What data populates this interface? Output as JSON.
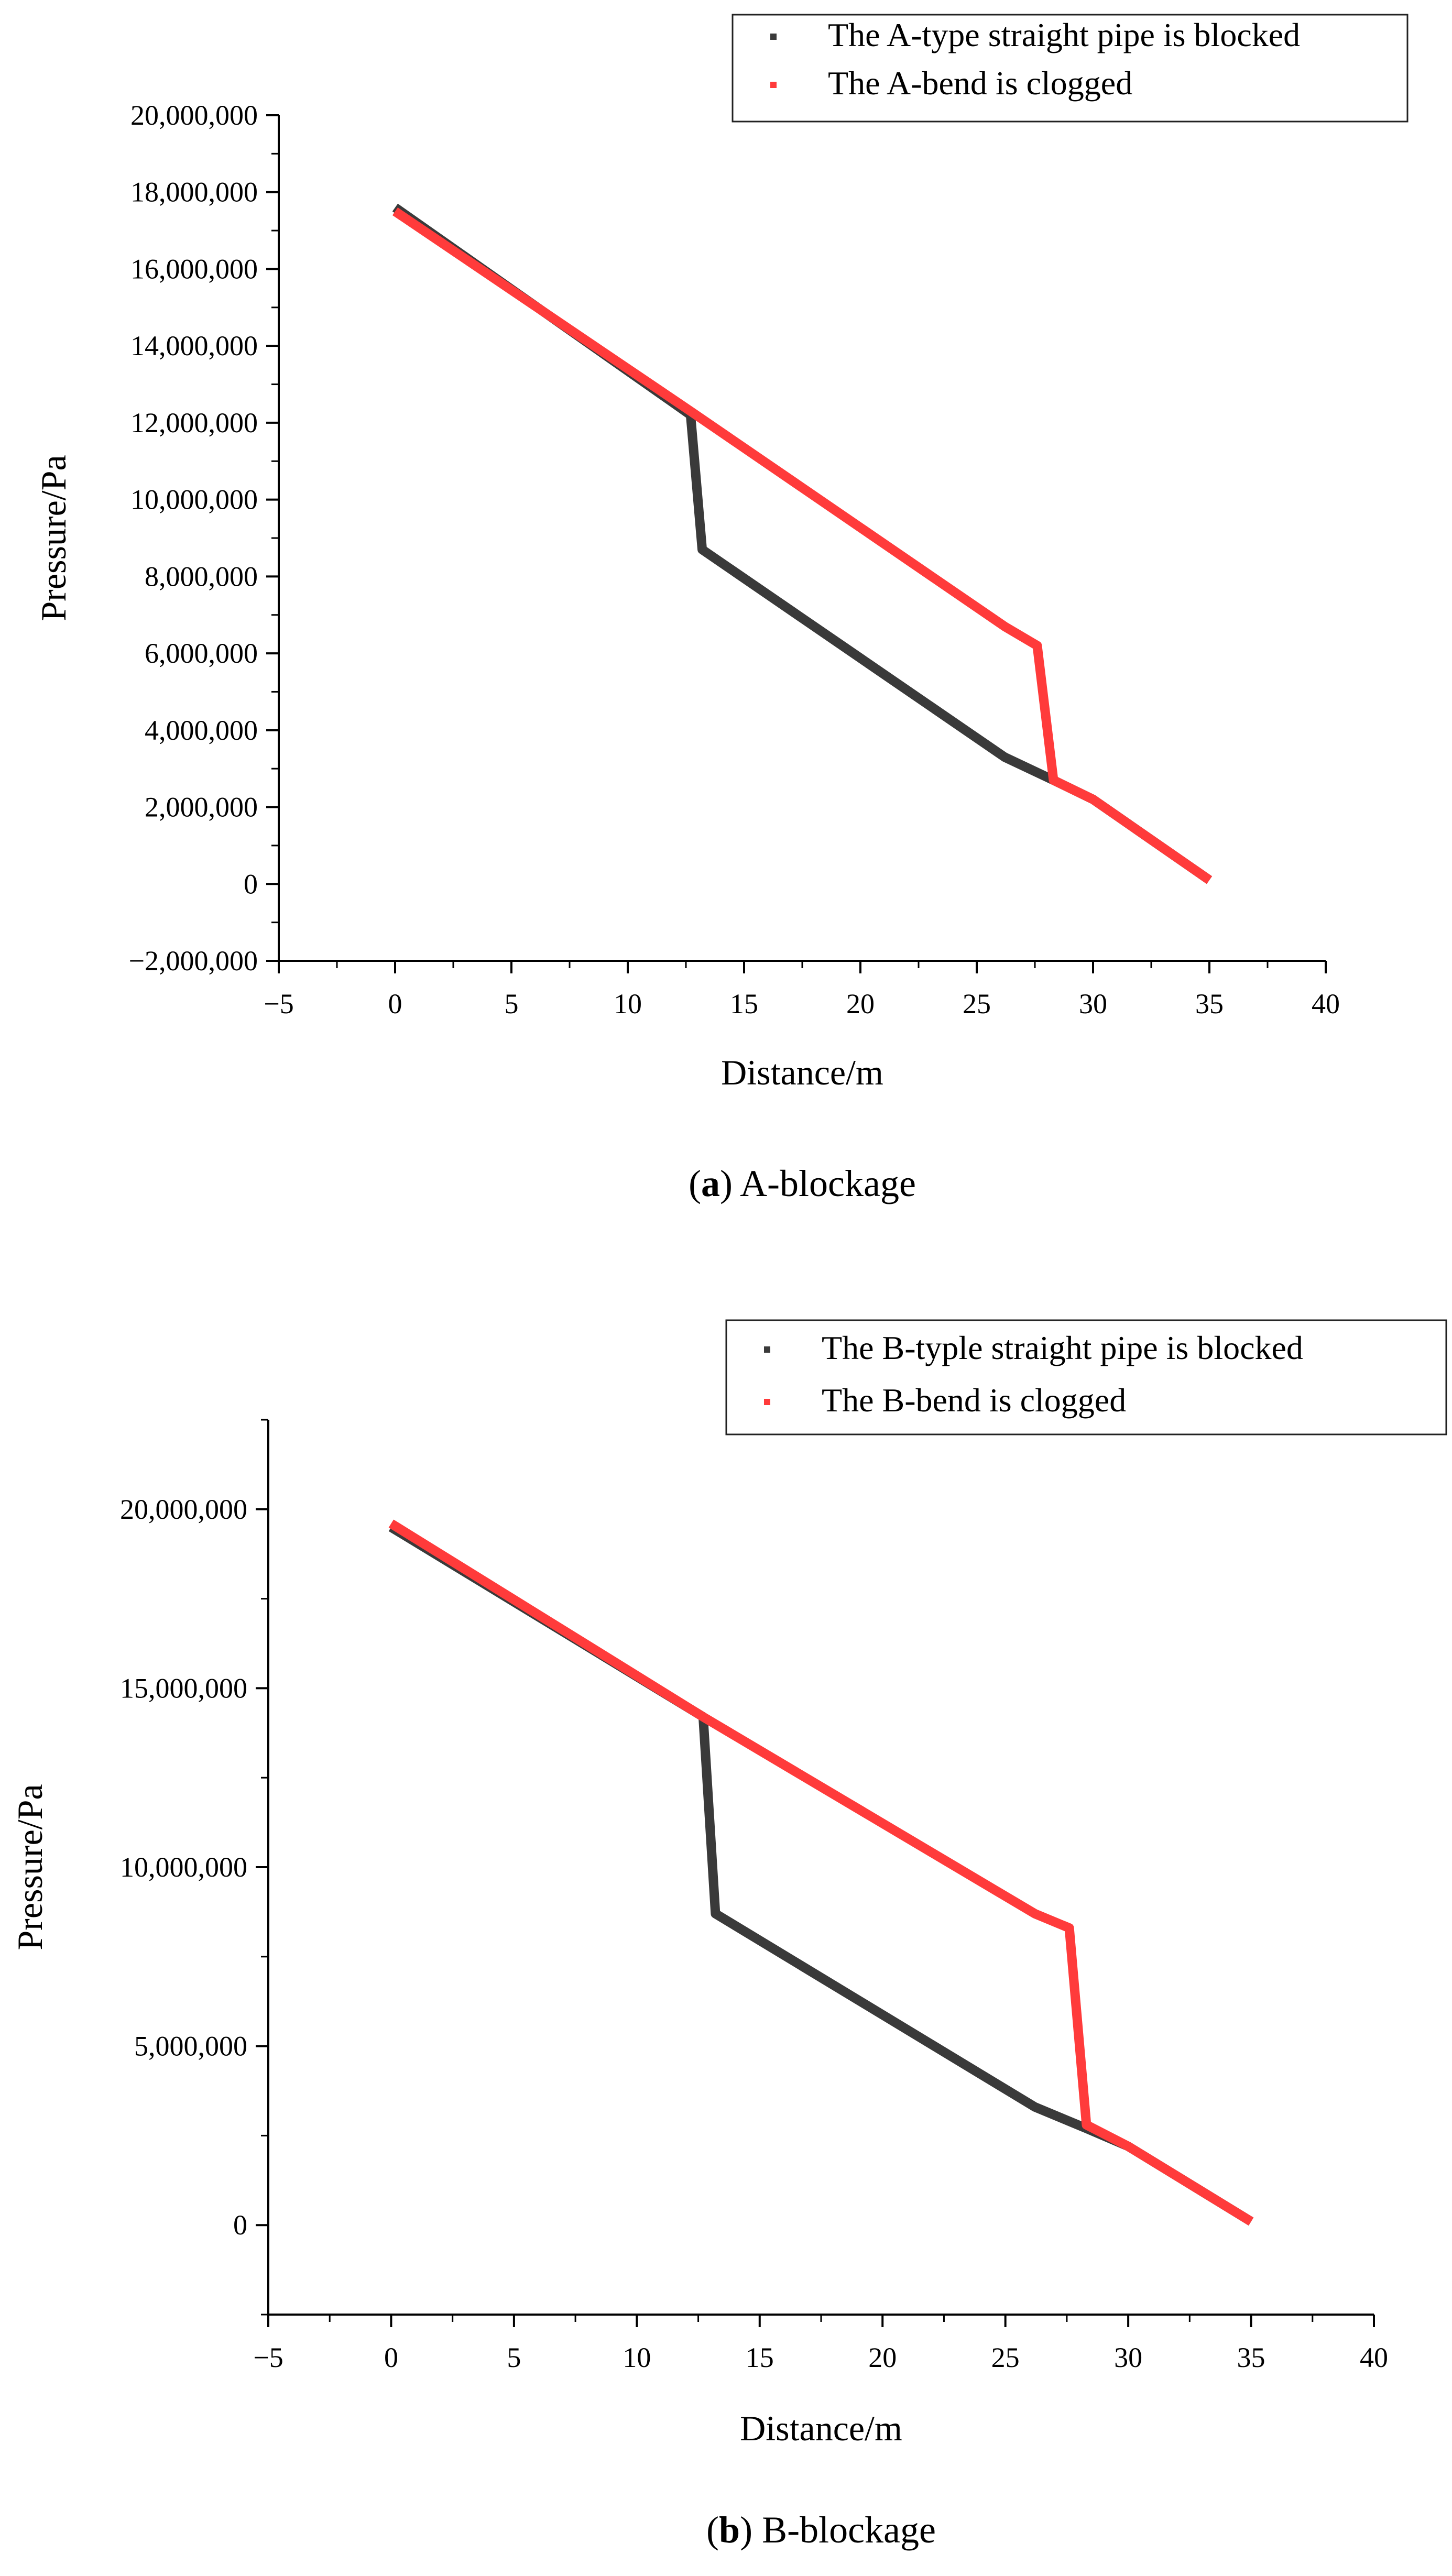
{
  "chart_data": [
    {
      "type": "line",
      "caption_letter": "a",
      "caption_text": "A-blockage",
      "xlabel": "Distance/m",
      "ylabel": "Pressure/Pa",
      "xlim": [
        -5,
        40
      ],
      "ylim": [
        -2000000,
        20000000
      ],
      "x_ticks": [
        -5,
        0,
        5,
        10,
        15,
        20,
        25,
        30,
        35,
        40
      ],
      "x_tick_labels": [
        "−5",
        "0",
        "5",
        "10",
        "15",
        "20",
        "25",
        "30",
        "35",
        "40"
      ],
      "y_ticks": [
        -2000000,
        0,
        2000000,
        4000000,
        6000000,
        8000000,
        10000000,
        12000000,
        14000000,
        16000000,
        18000000,
        20000000
      ],
      "y_tick_labels": [
        "−2,000,000",
        "0",
        "2,000,000",
        "4,000,000",
        "6,000,000",
        "8,000,000",
        "10,000,000",
        "12,000,000",
        "14,000,000",
        "16,000,000",
        "18,000,000",
        "20,000,000"
      ],
      "legend_position": "top-right",
      "grid": false,
      "series": [
        {
          "name": "The A-type straight pipe is blocked",
          "color": "#3a3a3a",
          "x": [
            0,
            12.7,
            13.2,
            26.2,
            28.3,
            30,
            35
          ],
          "y": [
            17600000,
            12200000,
            8700000,
            3300000,
            2700000,
            2200000,
            100000
          ]
        },
        {
          "name": "The A-bend is clogged",
          "color": "#ff3b3b",
          "x": [
            0,
            12.7,
            26.2,
            27.6,
            28.3,
            30,
            35
          ],
          "y": [
            17500000,
            12300000,
            6700000,
            6200000,
            2700000,
            2200000,
            100000
          ]
        }
      ]
    },
    {
      "type": "line",
      "caption_letter": "b",
      "caption_text": "B-blockage",
      "xlabel": "Distance/m",
      "ylabel": "Pressure/Pa",
      "xlim": [
        -5,
        40
      ],
      "ylim": [
        -2500000,
        22500000
      ],
      "x_ticks": [
        -5,
        0,
        5,
        10,
        15,
        20,
        25,
        30,
        35,
        40
      ],
      "x_tick_labels": [
        "−5",
        "0",
        "5",
        "10",
        "15",
        "20",
        "25",
        "30",
        "35",
        "40"
      ],
      "y_ticks": [
        0,
        5000000,
        10000000,
        15000000,
        20000000
      ],
      "y_tick_labels": [
        "0",
        "5,000,000",
        "10,000,000",
        "15,000,000",
        "20,000,000"
      ],
      "legend_position": "top-right",
      "grid": false,
      "series": [
        {
          "name": "The B-typle straight pipe is blocked",
          "color": "#3a3a3a",
          "x": [
            0,
            12.7,
            13.2,
            26.2,
            28.3,
            30,
            35
          ],
          "y": [
            19500000,
            14200000,
            8700000,
            3300000,
            2700000,
            2200000,
            100000
          ]
        },
        {
          "name": "The B-bend is clogged",
          "color": "#ff3b3b",
          "x": [
            0,
            12.7,
            26.2,
            27.6,
            28.3,
            30,
            35
          ],
          "y": [
            19600000,
            14200000,
            8700000,
            8300000,
            2800000,
            2200000,
            100000
          ]
        }
      ]
    }
  ]
}
